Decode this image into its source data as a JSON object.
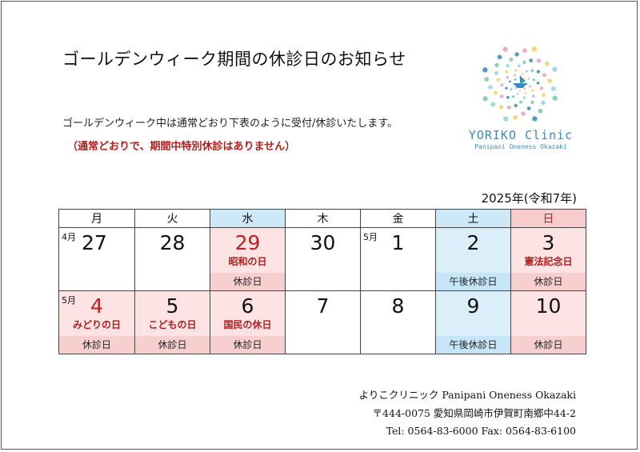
{
  "title": "ゴールデンウィーク期間の休診日のお知らせ",
  "intro": "ゴールデンウィーク中は通常どおり下表のように受付/休診いたします。",
  "note": "（通常どおりで、期間中特別休診はありません）",
  "logo": {
    "name": "YORIKO Clinic",
    "sub": "Panipani Oneness Okazaki",
    "colors": {
      "primary": "#3a8bbd",
      "secondary": "#e3a0c2",
      "accent": "#f1d060"
    }
  },
  "year_label": "2025年(令和7年)",
  "weekdays": [
    "月",
    "火",
    "水",
    "木",
    "金",
    "土",
    "日"
  ],
  "week1": {
    "mon": {
      "month": "4月",
      "num": "27"
    },
    "tue": {
      "num": "28"
    },
    "wed": {
      "num": "29",
      "holiday": "昭和の日",
      "status": "休診日"
    },
    "thu": {
      "num": "30"
    },
    "fri": {
      "month": "5月",
      "num": "1"
    },
    "sat": {
      "num": "2",
      "status": "午後休診日"
    },
    "sun": {
      "num": "3",
      "holiday": "憲法記念日",
      "status": "休診日"
    }
  },
  "week2": {
    "mon": {
      "month": "5月",
      "num": "4",
      "holiday": "みどりの日",
      "status": "休診日"
    },
    "tue": {
      "num": "5",
      "holiday": "こどもの日",
      "status": "休診日"
    },
    "wed": {
      "num": "6",
      "holiday": "国民の休日",
      "status": "休診日"
    },
    "thu": {
      "num": "7"
    },
    "fri": {
      "num": "8"
    },
    "sat": {
      "num": "9",
      "status": "午後休診日"
    },
    "sun": {
      "num": "10",
      "status": "休診日"
    }
  },
  "footer": {
    "clinic": "よりこクリニック Panipani Oneness Okazaki",
    "address": "〒444-0075 愛知県岡崎市伊賀町南郷中44-2",
    "contact": "Tel: 0564-83-6000  Fax: 0564-83-6100"
  }
}
